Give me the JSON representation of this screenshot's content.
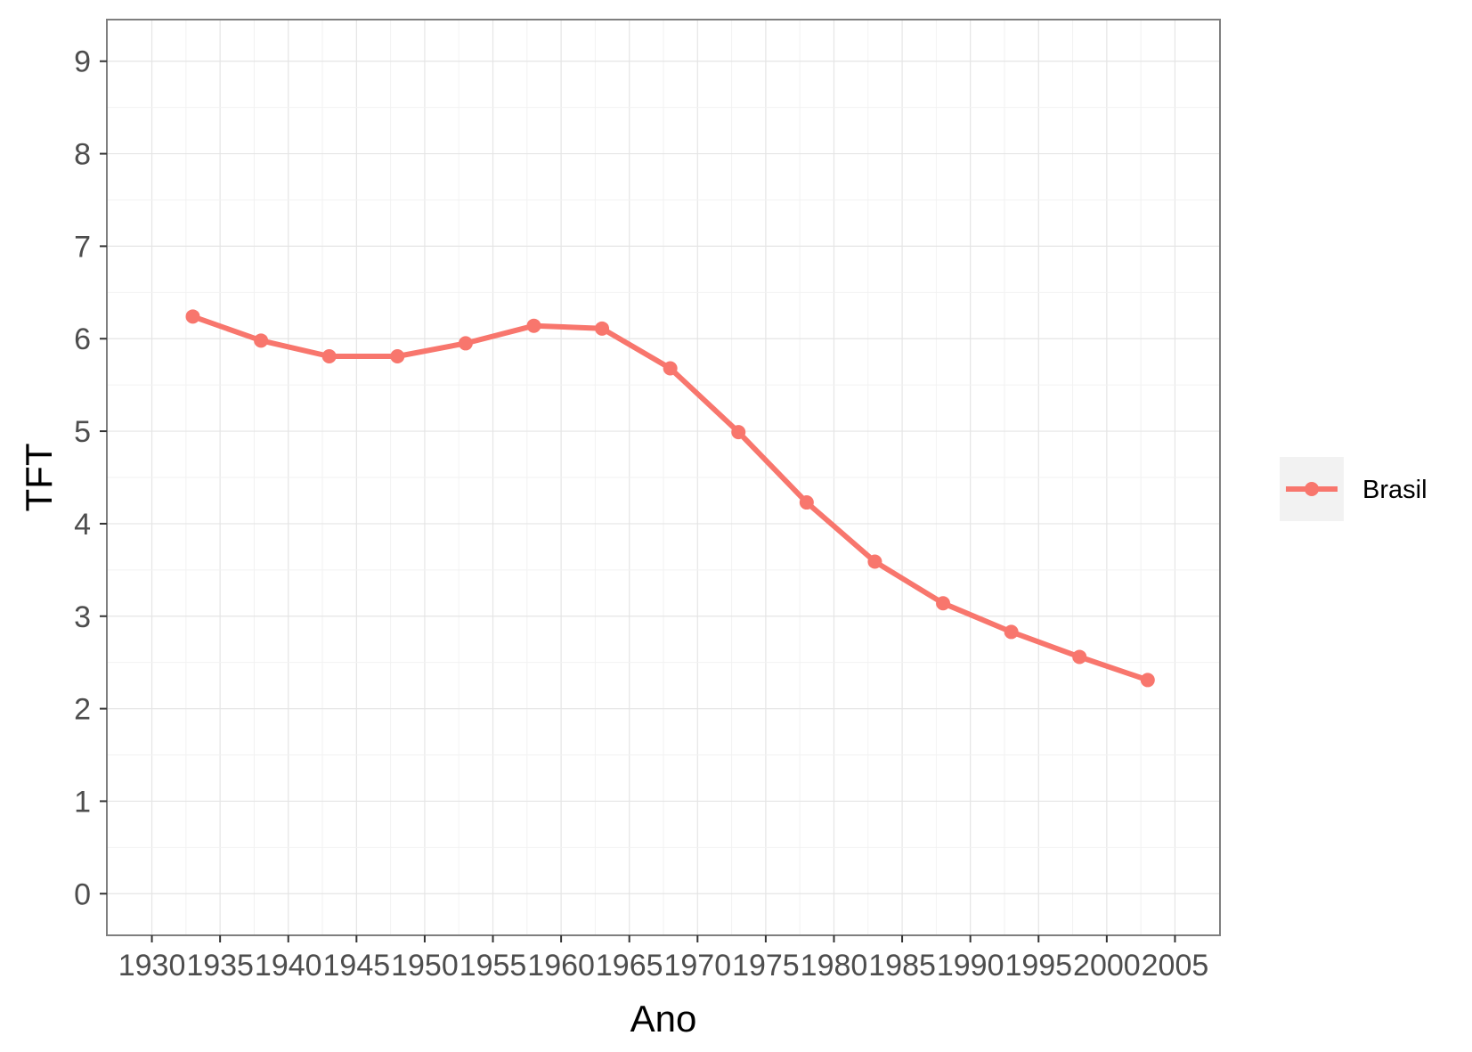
{
  "chart_data": {
    "type": "line",
    "title": "",
    "xlabel": "Ano",
    "ylabel": "TFT",
    "xlim": [
      1926.7,
      2008.3
    ],
    "ylim": [
      -0.45,
      9.45
    ],
    "x_ticks": [
      1930,
      1935,
      1940,
      1945,
      1950,
      1955,
      1960,
      1965,
      1970,
      1975,
      1980,
      1985,
      1990,
      1995,
      2000,
      2005
    ],
    "y_ticks": [
      0,
      1,
      2,
      3,
      4,
      5,
      6,
      7,
      8,
      9
    ],
    "grid": true,
    "legend_position": "right",
    "series": [
      {
        "name": "Brasil",
        "color": "#F8766D",
        "x": [
          1933,
          1938,
          1943,
          1948,
          1953,
          1958,
          1963,
          1968,
          1973,
          1978,
          1983,
          1988,
          1993,
          1998,
          2003
        ],
        "values": [
          6.24,
          5.98,
          5.81,
          5.81,
          5.95,
          6.14,
          6.11,
          5.68,
          4.99,
          4.23,
          3.59,
          3.14,
          2.83,
          2.56,
          2.31
        ]
      }
    ]
  }
}
